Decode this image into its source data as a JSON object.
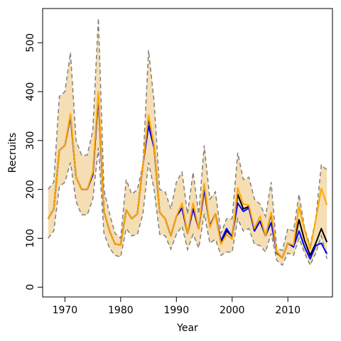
{
  "chart_data": {
    "type": "line",
    "xlabel": "Year",
    "ylabel": "Recruits",
    "xlim": [
      1966,
      2018
    ],
    "ylim": [
      -20,
      570
    ],
    "x_ticks": [
      1970,
      1980,
      1990,
      2000,
      2010
    ],
    "y_ticks": [
      0,
      100,
      200,
      300,
      400,
      500
    ],
    "y_tick_labels": [
      "0",
      "100",
      "200",
      "300",
      "400",
      "500"
    ],
    "x_tick_labels": [
      "1970",
      "1980",
      "1990",
      "2000",
      "2010"
    ],
    "x": [
      1967,
      1968,
      1969,
      1970,
      1971,
      1972,
      1973,
      1974,
      1975,
      1976,
      1977,
      1978,
      1979,
      1980,
      1981,
      1982,
      1983,
      1984,
      1985,
      1986,
      1987,
      1988,
      1989,
      1990,
      1991,
      1992,
      1993,
      1994,
      1995,
      1996,
      1997,
      1998,
      1999,
      2000,
      2001,
      2002,
      2003,
      2004,
      2005,
      2006,
      2007,
      2008,
      2009,
      2010,
      2011,
      2012,
      2013,
      2014,
      2015,
      2016,
      2017
    ],
    "band": {
      "color": "#f5deb3",
      "upper": [
        200,
        215,
        390,
        400,
        480,
        300,
        270,
        270,
        320,
        550,
        200,
        150,
        110,
        100,
        220,
        190,
        200,
        250,
        485,
        380,
        200,
        195,
        160,
        215,
        235,
        150,
        235,
        150,
        290,
        180,
        195,
        110,
        140,
        140,
        275,
        220,
        225,
        180,
        170,
        145,
        215,
        80,
        75,
        120,
        115,
        190,
        120,
        85,
        140,
        250,
        240
      ],
      "lower": [
        100,
        115,
        205,
        215,
        255,
        175,
        148,
        148,
        180,
        285,
        110,
        80,
        65,
        62,
        120,
        105,
        108,
        150,
        255,
        200,
        108,
        105,
        78,
        108,
        125,
        77,
        108,
        80,
        150,
        90,
        98,
        65,
        72,
        72,
        140,
        115,
        120,
        88,
        85,
        72,
        110,
        55,
        45,
        70,
        65,
        100,
        70,
        45,
        70,
        105,
        58
      ]
    },
    "series": [
      {
        "color": "#000000",
        "values": [
          140,
          160,
          280,
          290,
          350,
          225,
          200,
          200,
          230,
          390,
          155,
          115,
          88,
          87,
          158,
          140,
          150,
          250,
          345,
          290,
          153,
          140,
          105,
          145,
          162,
          110,
          160,
          120,
          200,
          125,
          150,
          90,
          115,
          104,
          190,
          160,
          165,
          115,
          135,
          105,
          150,
          70,
          60,
          90,
          85,
          138,
          95,
          65,
          90,
          120,
          92
        ]
      },
      {
        "color": "#0000ff",
        "values": [
          140,
          160,
          280,
          290,
          350,
          225,
          200,
          200,
          230,
          390,
          155,
          115,
          88,
          87,
          158,
          140,
          150,
          250,
          330,
          285,
          153,
          140,
          105,
          145,
          162,
          110,
          160,
          120,
          200,
          125,
          150,
          95,
          120,
          103,
          172,
          155,
          162,
          115,
          135,
          105,
          132,
          72,
          60,
          90,
          82,
          115,
          82,
          58,
          85,
          90,
          68
        ]
      },
      {
        "color": "#ffa500",
        "values": [
          140,
          160,
          280,
          290,
          355,
          225,
          200,
          200,
          235,
          400,
          155,
          115,
          88,
          87,
          158,
          140,
          150,
          250,
          352,
          290,
          153,
          140,
          105,
          145,
          172,
          110,
          172,
          120,
          212,
          122,
          150,
          88,
          108,
          98,
          203,
          170,
          168,
          120,
          145,
          105,
          153,
          72,
          60,
          90,
          86,
          165,
          117,
          78,
          138,
          202,
          168
        ]
      }
    ],
    "bound_lines": {
      "color": "#808080",
      "style": "dashed"
    }
  }
}
